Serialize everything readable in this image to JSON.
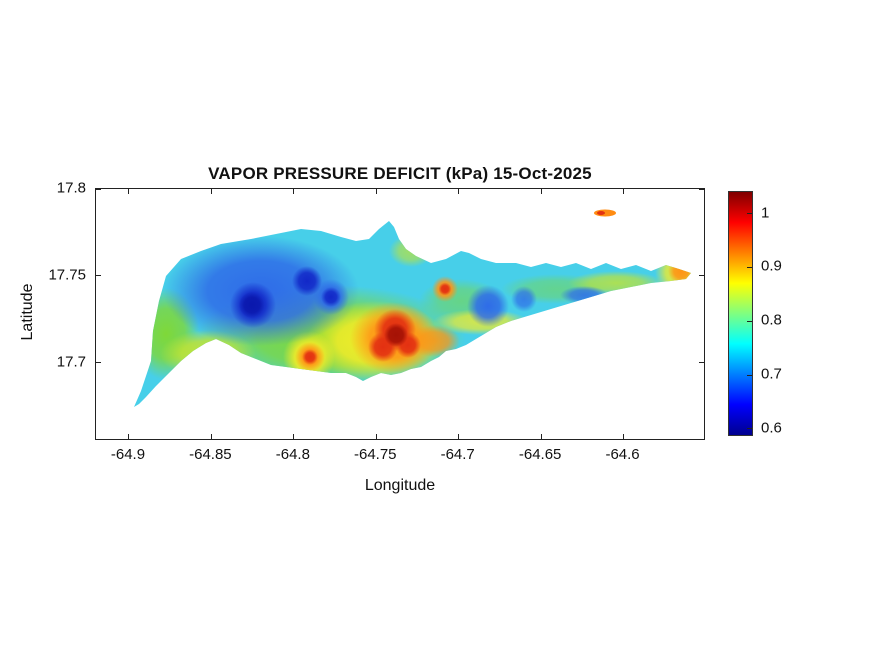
{
  "chart_data": {
    "type": "heatmap",
    "title": "VAPOR PRESSURE DEFICIT (kPa) 15-Oct-2025",
    "xlabel": "Longitude",
    "ylabel": "Latitude",
    "xlim": [
      -64.92,
      -64.55
    ],
    "ylim": [
      17.655,
      17.8
    ],
    "x_ticks": [
      -64.9,
      -64.85,
      -64.8,
      -64.75,
      -64.7,
      -64.65,
      -64.6
    ],
    "x_tick_labels": [
      "-64.9",
      "-64.85",
      "-64.8",
      "-64.75",
      "-64.7",
      "-64.65",
      "-64.6"
    ],
    "y_ticks": [
      17.7,
      17.75,
      17.8
    ],
    "y_tick_labels": [
      "17.7",
      "17.75",
      "17.8"
    ],
    "grid": false,
    "colormap": "jet",
    "colorbar": {
      "min": 0.585,
      "max": 1.04,
      "ticks": [
        0.6,
        0.7,
        0.8,
        0.9,
        1
      ],
      "tick_labels": [
        "0.6",
        "0.7",
        "0.8",
        "0.9",
        "1"
      ],
      "position": "right",
      "stops": [
        {
          "frac": 0.0,
          "color": "#00008f"
        },
        {
          "frac": 0.125,
          "color": "#0000ff"
        },
        {
          "frac": 0.375,
          "color": "#00ffff"
        },
        {
          "frac": 0.625,
          "color": "#ffff00"
        },
        {
          "frac": 0.875,
          "color": "#ff0000"
        },
        {
          "frac": 1.0,
          "color": "#800000"
        }
      ]
    },
    "region": "St. Croix island mask (filled-contour VPD field)",
    "background_value_kpa": 0.77,
    "features": [
      {
        "label": "cold pool northwest",
        "lon": -64.845,
        "lat": 17.745,
        "value_kpa": 0.6
      },
      {
        "label": "cold pool north-central",
        "lon": -64.81,
        "lat": 17.755,
        "value_kpa": 0.63
      },
      {
        "label": "cold pool east-central",
        "lon": -64.71,
        "lat": 17.742,
        "value_kpa": 0.68
      },
      {
        "label": "cold streak far east",
        "lon": -64.655,
        "lat": 17.746,
        "value_kpa": 0.7
      },
      {
        "label": "hot spot south-central",
        "lon": -64.755,
        "lat": 17.712,
        "value_kpa": 1.02
      },
      {
        "label": "hot spot south",
        "lon": -64.795,
        "lat": 17.702,
        "value_kpa": 0.97
      },
      {
        "label": "warm spot north-central",
        "lon": -64.72,
        "lat": 17.744,
        "value_kpa": 0.95
      },
      {
        "label": "warm east tip",
        "lon": -64.565,
        "lat": 17.752,
        "value_kpa": 0.92
      },
      {
        "label": "warm sliver offshore north",
        "lon": -64.61,
        "lat": 17.787,
        "value_kpa": 0.9
      }
    ]
  }
}
